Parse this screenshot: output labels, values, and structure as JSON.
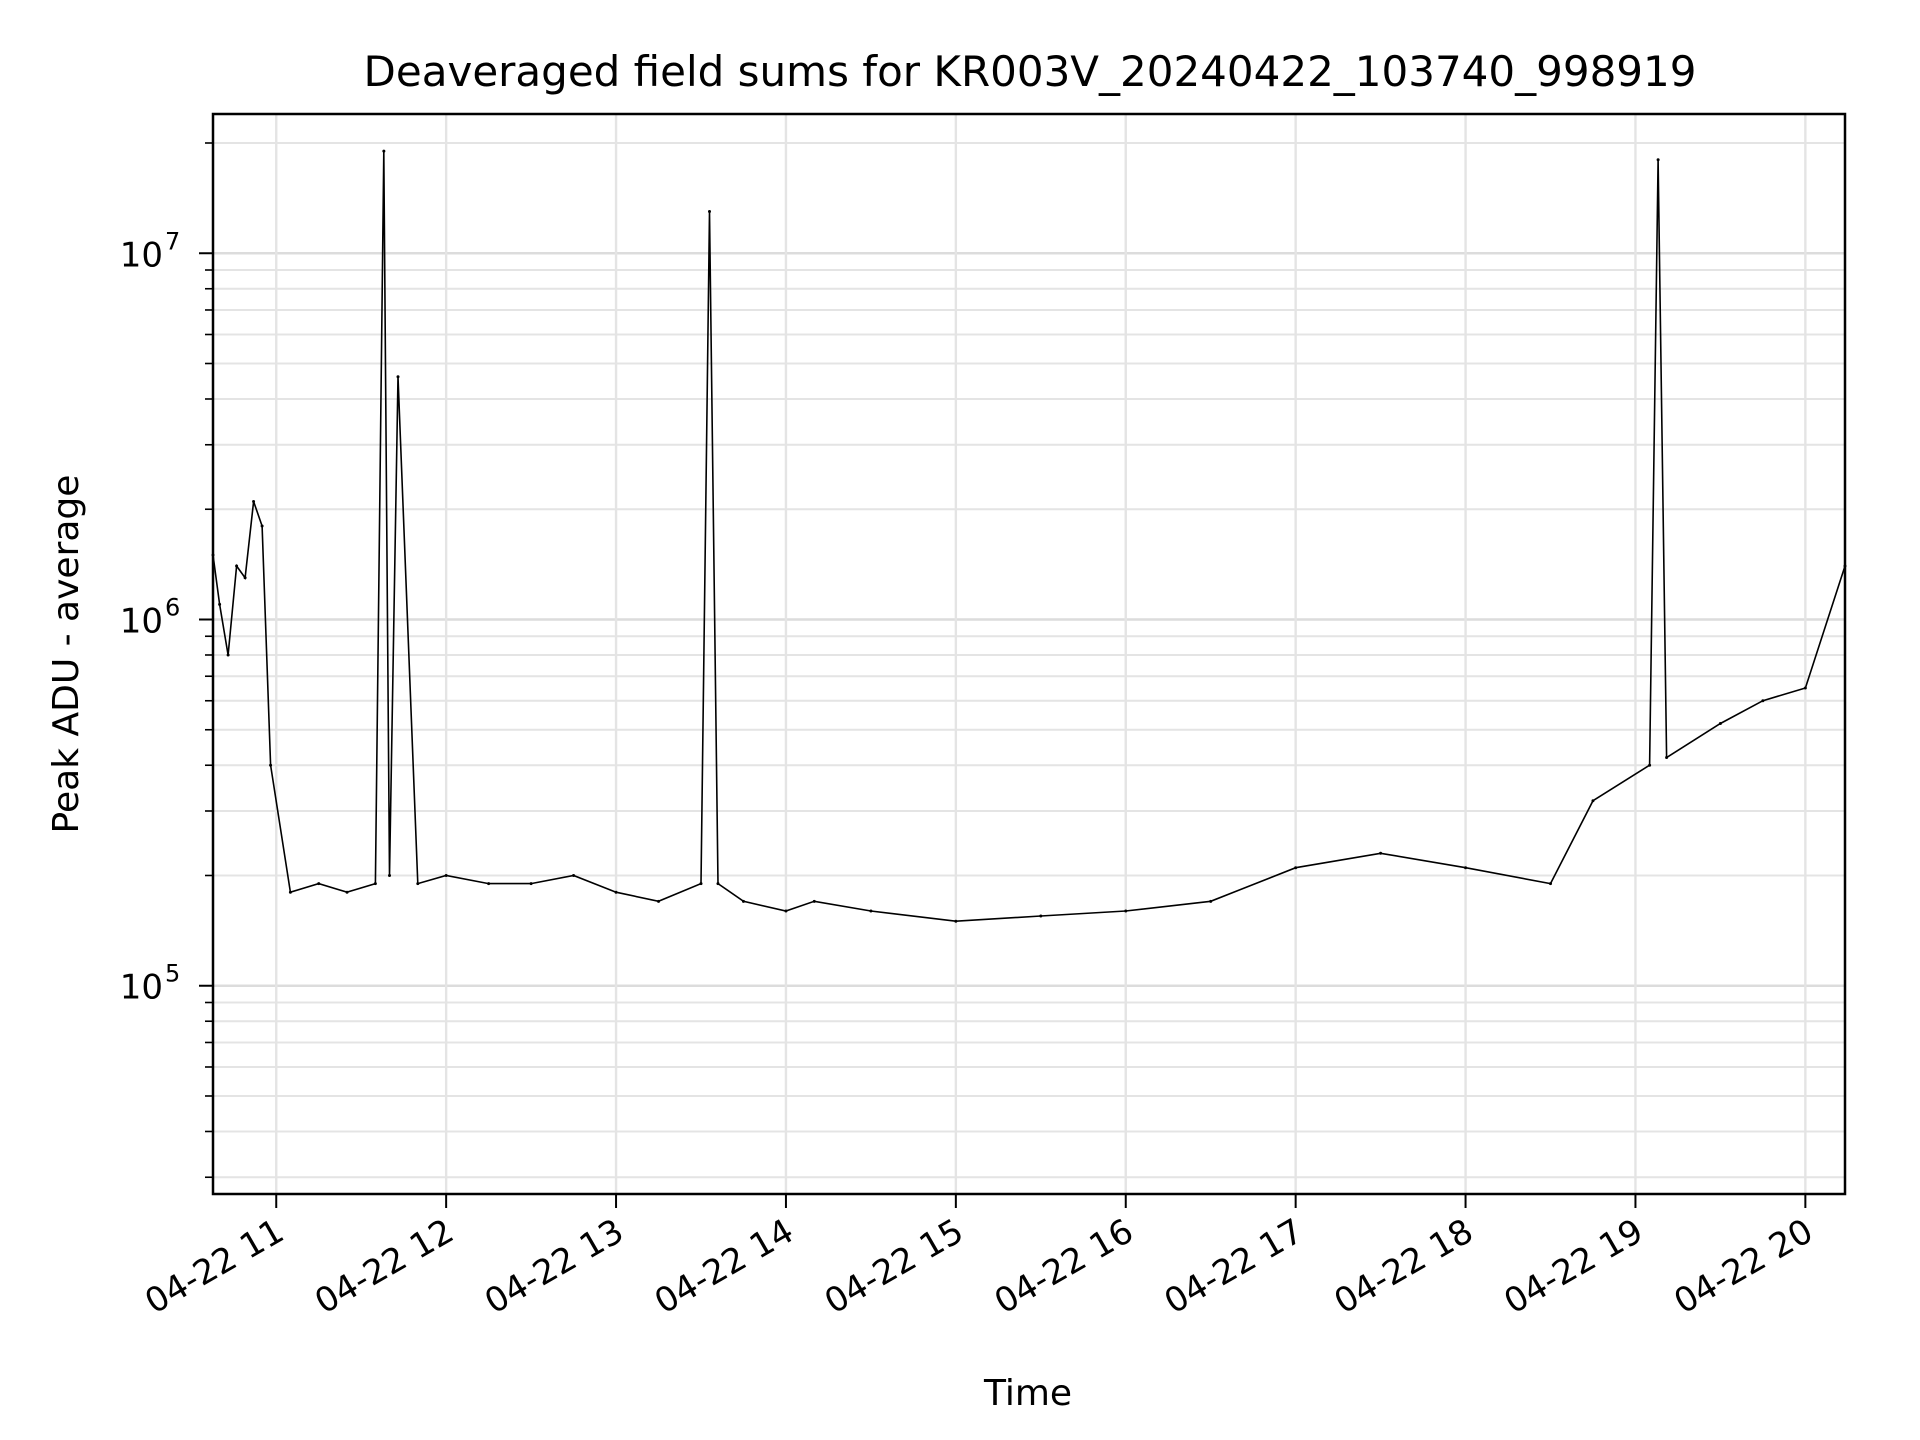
{
  "chart_data": {
    "type": "line",
    "title": "Deaveraged field sums for KR003V_20240422_103740_998919",
    "xlabel": "Time",
    "ylabel": "Peak ADU - average",
    "yscale": "log",
    "ylim": [
      27000,
      24000000
    ],
    "xlim": [
      "2024-04-22 10:37:40",
      "2024-04-22 20:14:00"
    ],
    "grid": true,
    "line_color": "#000000",
    "x_tick_labels": [
      "04-22 11",
      "04-22 12",
      "04-22 13",
      "04-22 14",
      "04-22 15",
      "04-22 16",
      "04-22 17",
      "04-22 18",
      "04-22 19",
      "04-22 20"
    ],
    "x_ticks": [
      "2024-04-22 11:00",
      "2024-04-22 12:00",
      "2024-04-22 13:00",
      "2024-04-22 14:00",
      "2024-04-22 15:00",
      "2024-04-22 16:00",
      "2024-04-22 17:00",
      "2024-04-22 18:00",
      "2024-04-22 19:00",
      "2024-04-22 20:00"
    ],
    "y_tick_labels": [
      {
        "base": "10",
        "exp": "5",
        "value": 100000
      },
      {
        "base": "10",
        "exp": "6",
        "value": 1000000
      },
      {
        "base": "10",
        "exp": "7",
        "value": 10000000
      }
    ],
    "series": [
      {
        "x": [
          "2024-04-22 10:37:40",
          "2024-04-22 10:40",
          "2024-04-22 10:43",
          "2024-04-22 10:46",
          "2024-04-22 10:49",
          "2024-04-22 10:52",
          "2024-04-22 10:55",
          "2024-04-22 10:58",
          "2024-04-22 11:05",
          "2024-04-22 11:15",
          "2024-04-22 11:25",
          "2024-04-22 11:35",
          "2024-04-22 11:38",
          "2024-04-22 11:40",
          "2024-04-22 11:43",
          "2024-04-22 11:50",
          "2024-04-22 12:00",
          "2024-04-22 12:15",
          "2024-04-22 12:30",
          "2024-04-22 12:45",
          "2024-04-22 13:00",
          "2024-04-22 13:15",
          "2024-04-22 13:30",
          "2024-04-22 13:33",
          "2024-04-22 13:36",
          "2024-04-22 13:45",
          "2024-04-22 14:00",
          "2024-04-22 14:10",
          "2024-04-22 14:30",
          "2024-04-22 15:00",
          "2024-04-22 15:30",
          "2024-04-22 16:00",
          "2024-04-22 16:30",
          "2024-04-22 17:00",
          "2024-04-22 17:30",
          "2024-04-22 18:00",
          "2024-04-22 18:30",
          "2024-04-22 18:45",
          "2024-04-22 19:05",
          "2024-04-22 19:08",
          "2024-04-22 19:11",
          "2024-04-22 19:30",
          "2024-04-22 19:45",
          "2024-04-22 20:00",
          "2024-04-22 20:14"
        ],
        "y": [
          1500000,
          1100000,
          800000,
          1400000,
          1300000,
          2100000,
          1800000,
          400000,
          180000,
          190000,
          180000,
          190000,
          19000000,
          200000,
          4600000,
          190000,
          200000,
          190000,
          190000,
          200000,
          180000,
          170000,
          190000,
          13000000,
          190000,
          170000,
          160000,
          170000,
          160000,
          150000,
          155000,
          160000,
          170000,
          210000,
          230000,
          210000,
          190000,
          320000,
          400000,
          18000000,
          420000,
          520000,
          600000,
          650000,
          1400000
        ]
      }
    ]
  }
}
